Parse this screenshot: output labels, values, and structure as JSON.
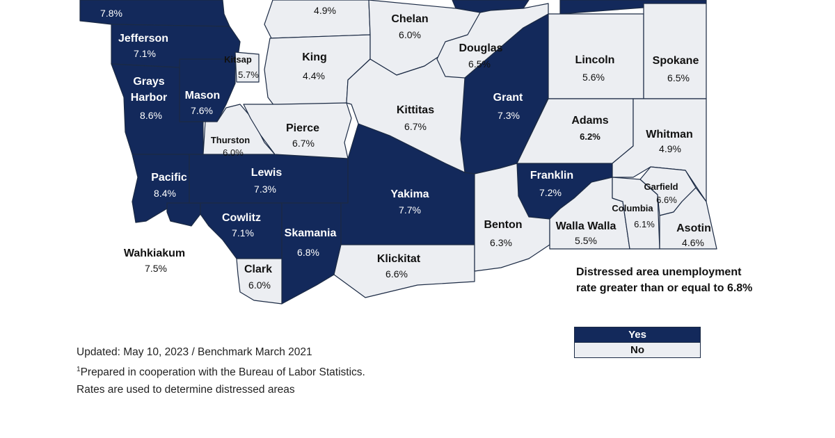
{
  "counties": [
    {
      "id": "clallam",
      "name": "",
      "rate": "7.8%",
      "distressed": true
    },
    {
      "id": "jefferson",
      "name": "Jefferson",
      "rate": "7.1%",
      "distressed": true
    },
    {
      "id": "grays-harbor",
      "name": "Grays Harbor",
      "name_line1": "Grays",
      "name_line2": "Harbor",
      "rate": "8.6%",
      "distressed": true
    },
    {
      "id": "mason",
      "name": "Mason",
      "rate": "7.6%",
      "distressed": true
    },
    {
      "id": "kitsap",
      "name": "Kitsap",
      "rate": "5.7%",
      "distressed": false
    },
    {
      "id": "thurston",
      "name": "Thurston",
      "rate": "6.0%",
      "distressed": false
    },
    {
      "id": "pacific",
      "name": "Pacific",
      "rate": "8.4%",
      "distressed": true
    },
    {
      "id": "wahkiakum",
      "name": "Wahkiakum",
      "rate": "7.5%",
      "distressed": true
    },
    {
      "id": "lewis",
      "name": "Lewis",
      "rate": "7.3%",
      "distressed": true
    },
    {
      "id": "cowlitz",
      "name": "Cowlitz",
      "rate": "7.1%",
      "distressed": true
    },
    {
      "id": "clark",
      "name": "Clark",
      "rate": "6.0%",
      "distressed": false
    },
    {
      "id": "skamania",
      "name": "Skamania",
      "rate": "6.8%",
      "distressed": true
    },
    {
      "id": "snohomish",
      "name": "",
      "rate": "4.9%",
      "distressed": false
    },
    {
      "id": "king",
      "name": "King",
      "rate": "4.4%",
      "distressed": false
    },
    {
      "id": "pierce",
      "name": "Pierce",
      "rate": "6.7%",
      "distressed": false
    },
    {
      "id": "chelan",
      "name": "Chelan",
      "rate": "6.0%",
      "distressed": false
    },
    {
      "id": "kittitas",
      "name": "Kittitas",
      "rate": "6.7%",
      "distressed": false
    },
    {
      "id": "yakima",
      "name": "Yakima",
      "rate": "7.7%",
      "distressed": true
    },
    {
      "id": "klickitat",
      "name": "Klickitat",
      "rate": "6.6%",
      "distressed": false
    },
    {
      "id": "douglas",
      "name": "Douglas",
      "rate": "6.5%",
      "distressed": false
    },
    {
      "id": "grant",
      "name": "Grant",
      "rate": "7.3%",
      "distressed": true
    },
    {
      "id": "benton",
      "name": "Benton",
      "rate": "6.3%",
      "distressed": false
    },
    {
      "id": "franklin",
      "name": "Franklin",
      "rate": "7.2%",
      "distressed": true
    },
    {
      "id": "lincoln",
      "name": "Lincoln",
      "rate": "5.6%",
      "distressed": false
    },
    {
      "id": "spokane",
      "name": "Spokane",
      "rate": "6.5%",
      "distressed": false
    },
    {
      "id": "adams",
      "name": "Adams",
      "rate": "6.2%",
      "distressed": false
    },
    {
      "id": "whitman",
      "name": "Whitman",
      "rate": "4.9%",
      "distressed": false
    },
    {
      "id": "walla-walla",
      "name": "Walla Walla",
      "rate": "5.5%",
      "distressed": false
    },
    {
      "id": "columbia",
      "name": "Columbia",
      "rate": "6.1%",
      "distressed": false
    },
    {
      "id": "garfield",
      "name": "Garfield",
      "rate": "6.6%",
      "distressed": false
    },
    {
      "id": "asotin",
      "name": "Asotin",
      "rate": "4.6%",
      "distressed": false
    }
  ],
  "legend": {
    "title": "Distressed area unemployment rate greater than or equal to 6.8%",
    "yes_label": "Yes",
    "no_label": "No",
    "yes_color": "#13295b",
    "no_color": "#eceef2"
  },
  "notes": {
    "updated": "Updated: May 10, 2023 / Benchmark March 2021",
    "footnote_mark": "1",
    "prepared": "Prepared in cooperation with the Bureau of Labor Statistics.",
    "rates": "Rates are used to determine distressed areas"
  }
}
